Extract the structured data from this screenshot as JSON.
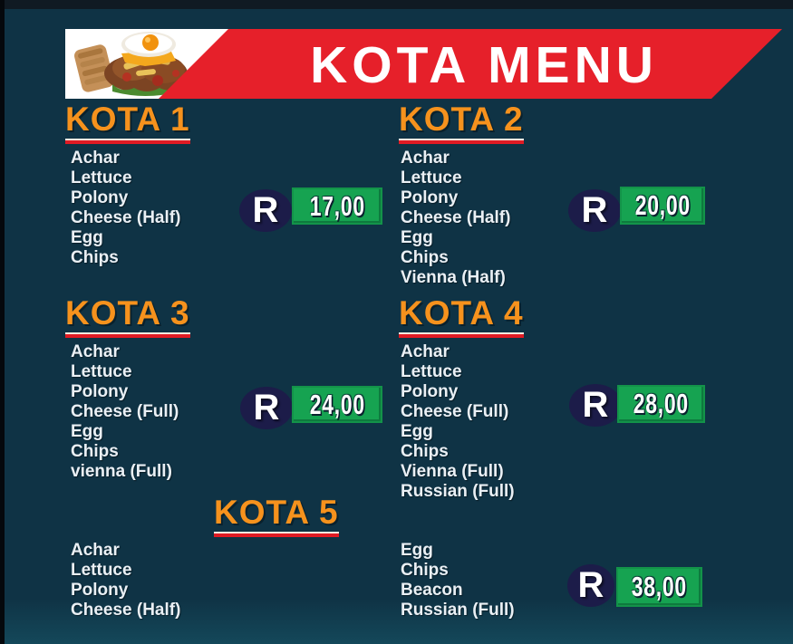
{
  "header": {
    "title": "KOTA MENU",
    "photo": "kota-sandwich-with-fried-egg"
  },
  "menu": {
    "currency": "R",
    "sections": [
      {
        "name": "KOTA 1",
        "items": [
          "Achar",
          "Lettuce",
          "Polony",
          "Cheese (Half)",
          "Egg",
          "Chips"
        ],
        "price": "17,00"
      },
      {
        "name": "KOTA 2",
        "items": [
          "Achar",
          "Lettuce",
          "Polony",
          "Cheese (Half)",
          "Egg",
          "Chips",
          "Vienna (Half)"
        ],
        "price": "20,00"
      },
      {
        "name": "KOTA 3",
        "items": [
          "Achar",
          "Lettuce",
          "Polony",
          "Cheese (Full)",
          "Egg",
          "Chips",
          "vienna (Full)"
        ],
        "price": "24,00"
      },
      {
        "name": "KOTA 4",
        "items": [
          "Achar",
          "Lettuce",
          "Polony",
          "Cheese (Full)",
          "Egg",
          "Chips",
          "Vienna (Full)",
          "Russian (Full)"
        ],
        "price": "28,00"
      },
      {
        "name": "KOTA 5",
        "items_left": [
          "Achar",
          "Lettuce",
          "Polony",
          "Cheese (Half)"
        ],
        "items_right": [
          "Egg",
          "Chips",
          "Beacon",
          "Russian (Full)"
        ],
        "price": "38,00"
      }
    ]
  },
  "colors": {
    "background_navy": "#0f3345",
    "banner_red": "#e6202a",
    "heading_orange": "#f6921d",
    "price_green": "#16a351",
    "price_circle_navy": "#1c1c49",
    "item_text": "#eaf0f5"
  }
}
